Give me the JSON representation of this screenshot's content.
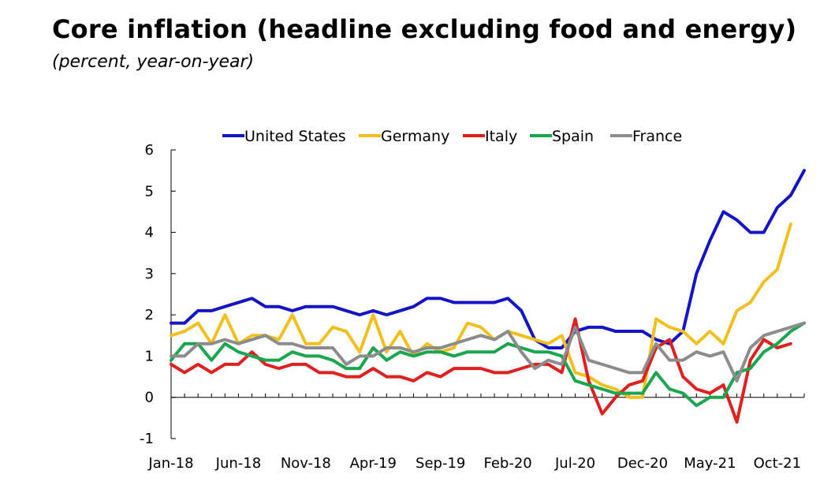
{
  "chart_data": {
    "type": "line",
    "title": "Core inflation (headline excluding food and energy)",
    "subtitle": "(percent, year-on-year)",
    "xlabel": "",
    "ylabel": "",
    "ylim": [
      -1,
      6
    ],
    "yticks": [
      "-1",
      "0",
      "1",
      "2",
      "3",
      "4",
      "5",
      "6"
    ],
    "x": [
      "Jan-18",
      "Feb-18",
      "Mar-18",
      "Apr-18",
      "May-18",
      "Jun-18",
      "Jul-18",
      "Aug-18",
      "Sep-18",
      "Oct-18",
      "Nov-18",
      "Dec-18",
      "Jan-19",
      "Feb-19",
      "Mar-19",
      "Apr-19",
      "May-19",
      "Jun-19",
      "Jul-19",
      "Aug-19",
      "Sep-19",
      "Oct-19",
      "Nov-19",
      "Dec-19",
      "Jan-20",
      "Feb-20",
      "Mar-20",
      "Apr-20",
      "May-20",
      "Jun-20",
      "Jul-20",
      "Aug-20",
      "Sep-20",
      "Oct-20",
      "Nov-20",
      "Dec-20",
      "Jan-21",
      "Feb-21",
      "Mar-21",
      "Apr-21",
      "May-21",
      "Jun-21",
      "Jul-21",
      "Aug-21",
      "Sep-21",
      "Oct-21",
      "Nov-21",
      "Dec-21"
    ],
    "xtick_labels": [
      "Jan-18",
      "Jun-18",
      "Nov-18",
      "Apr-19",
      "Sep-19",
      "Feb-20",
      "Jul-20",
      "Dec-20",
      "May-21",
      "Oct-21"
    ],
    "grid": false,
    "legend_position": "top",
    "series": [
      {
        "name": "United States",
        "color": "#1515c8",
        "values": [
          1.8,
          1.8,
          2.1,
          2.1,
          2.2,
          2.3,
          2.4,
          2.2,
          2.2,
          2.1,
          2.2,
          2.2,
          2.2,
          2.1,
          2.0,
          2.1,
          2.0,
          2.1,
          2.2,
          2.4,
          2.4,
          2.3,
          2.3,
          2.3,
          2.3,
          2.4,
          2.1,
          1.4,
          1.2,
          1.2,
          1.6,
          1.7,
          1.7,
          1.6,
          1.6,
          1.6,
          1.4,
          1.3,
          1.6,
          3.0,
          3.8,
          4.5,
          4.3,
          4.0,
          4.0,
          4.6,
          4.9,
          5.5
        ]
      },
      {
        "name": "Germany",
        "color": "#f2c01e",
        "values": [
          1.5,
          1.6,
          1.8,
          1.3,
          2.0,
          1.3,
          1.5,
          1.5,
          1.4,
          2.0,
          1.3,
          1.3,
          1.7,
          1.6,
          1.1,
          2.0,
          1.1,
          1.6,
          1.0,
          1.3,
          1.1,
          1.2,
          1.8,
          1.7,
          1.4,
          1.6,
          1.5,
          1.4,
          1.3,
          1.5,
          0.6,
          0.5,
          0.3,
          0.2,
          0.0,
          0.0,
          1.9,
          1.7,
          1.6,
          1.3,
          1.6,
          1.3,
          2.1,
          2.3,
          2.8,
          3.1,
          4.2,
          null
        ]
      },
      {
        "name": "Italy",
        "color": "#e01f1f",
        "values": [
          0.8,
          0.6,
          0.8,
          0.6,
          0.8,
          0.8,
          1.1,
          0.8,
          0.7,
          0.8,
          0.8,
          0.6,
          0.6,
          0.5,
          0.5,
          0.7,
          0.5,
          0.5,
          0.4,
          0.6,
          0.5,
          0.7,
          0.7,
          0.7,
          0.6,
          0.6,
          0.7,
          0.8,
          0.8,
          0.6,
          1.9,
          0.4,
          -0.4,
          0.0,
          0.3,
          0.4,
          1.2,
          1.4,
          0.5,
          0.2,
          0.1,
          0.3,
          -0.6,
          0.9,
          1.4,
          1.2,
          1.3,
          null
        ]
      },
      {
        "name": "Spain",
        "color": "#1aa64e",
        "values": [
          0.9,
          1.3,
          1.3,
          0.9,
          1.3,
          1.1,
          1.0,
          0.9,
          0.9,
          1.1,
          1.0,
          1.0,
          0.9,
          0.7,
          0.7,
          1.2,
          0.9,
          1.1,
          1.0,
          1.1,
          1.1,
          1.0,
          1.1,
          1.1,
          1.1,
          1.3,
          1.2,
          1.1,
          1.1,
          1.0,
          0.4,
          0.3,
          0.2,
          0.1,
          0.1,
          0.1,
          0.6,
          0.2,
          0.1,
          -0.2,
          0.0,
          0.0,
          0.6,
          0.7,
          1.1,
          1.3,
          1.6,
          1.8
        ]
      },
      {
        "name": "France",
        "color": "#8c8c8c",
        "values": [
          1.0,
          1.0,
          1.3,
          1.3,
          1.4,
          1.3,
          1.4,
          1.5,
          1.3,
          1.3,
          1.2,
          1.2,
          1.2,
          0.8,
          1.0,
          1.0,
          1.2,
          1.2,
          1.1,
          1.2,
          1.2,
          1.3,
          1.4,
          1.5,
          1.4,
          1.6,
          1.1,
          0.7,
          0.9,
          0.8,
          1.7,
          0.9,
          0.8,
          0.7,
          0.6,
          0.6,
          1.3,
          0.9,
          0.9,
          1.1,
          1.0,
          1.1,
          0.4,
          1.2,
          1.5,
          1.6,
          1.7,
          1.8
        ]
      }
    ]
  }
}
